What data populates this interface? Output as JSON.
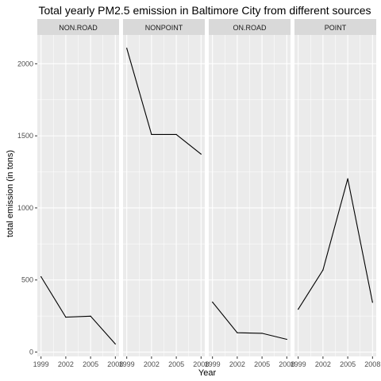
{
  "chart_data": {
    "type": "line",
    "title": "Total yearly PM2.5 emission in Baltimore City from different sources",
    "xlabel": "Year",
    "ylabel": "total emission (in tons)",
    "x": [
      1999,
      2002,
      2005,
      2008
    ],
    "x_tick_labels": [
      "1999",
      "2002",
      "2005",
      "2008"
    ],
    "y_ticks": [
      0,
      500,
      1000,
      1500,
      2000
    ],
    "y_tick_labels": [
      "0",
      "500",
      "1000",
      "1500",
      "2000"
    ],
    "ylim": [
      -30,
      2200
    ],
    "grid": true,
    "legend": "none",
    "facets": [
      {
        "name": "NON.ROAD",
        "values": [
          522.9,
          242.0,
          248.9,
          55.8
        ]
      },
      {
        "name": "NONPOINT",
        "values": [
          2107.6,
          1509.5,
          1509.5,
          1373.2
        ]
      },
      {
        "name": "ON.ROAD",
        "values": [
          346.8,
          134.3,
          130.4,
          88.3
        ]
      },
      {
        "name": "POINT",
        "values": [
          296.8,
          569.3,
          1202.5,
          344.98
        ]
      }
    ]
  },
  "colors": {
    "panel_background": "#ebebeb",
    "grid_major": "#ffffff",
    "strip_background": "#d9d9d9",
    "line": "#000000"
  }
}
